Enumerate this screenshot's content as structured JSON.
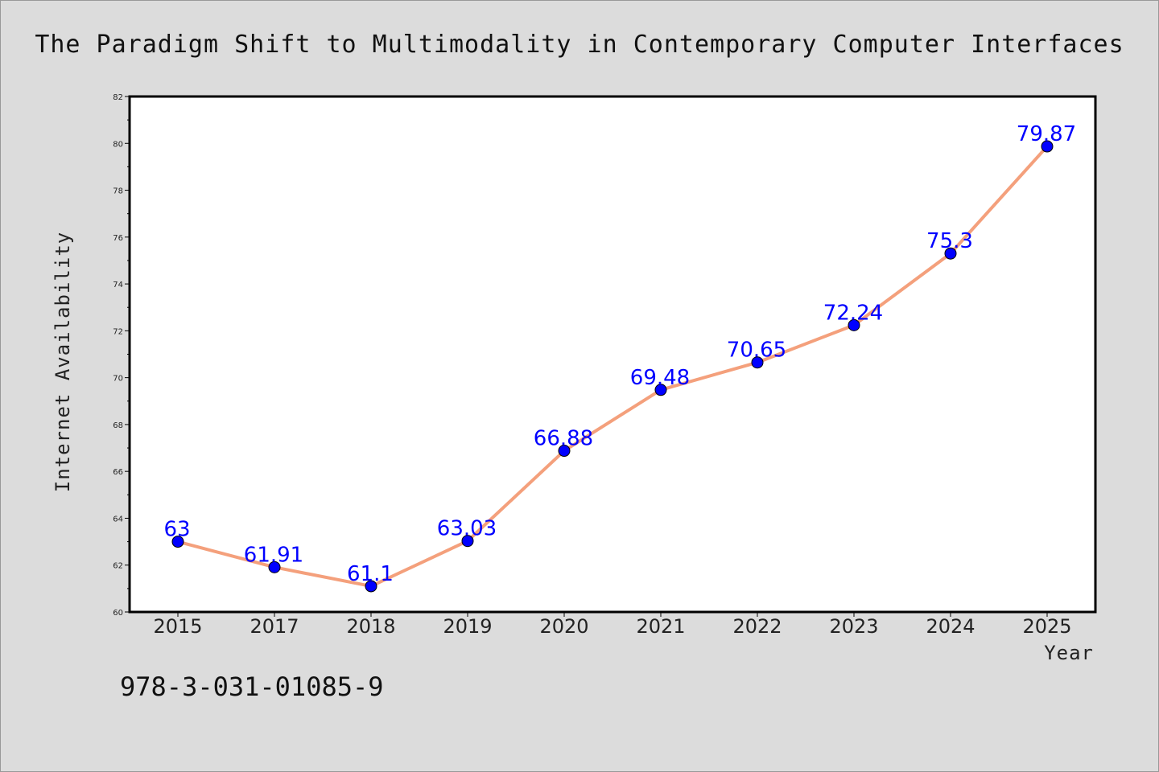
{
  "footnote": "978-3-031-01085-9",
  "chart_data": {
    "type": "line",
    "title": "The Paradigm Shift to Multimodality in Contemporary Computer Interfaces",
    "xlabel": "Year",
    "ylabel": "Internet Availability",
    "categories": [
      "2015",
      "2017",
      "2018",
      "2019",
      "2020",
      "2021",
      "2022",
      "2023",
      "2024",
      "2025"
    ],
    "values": [
      63,
      61.91,
      61.1,
      63.03,
      66.88,
      69.48,
      70.65,
      72.24,
      75.3,
      79.87
    ],
    "data_labels": [
      "63",
      "61.91",
      "61.1",
      "63.03",
      "66.88",
      "69.48",
      "70.65",
      "72.24",
      "75.3",
      "79.87"
    ],
    "ylim": [
      60,
      82
    ],
    "yticks": [
      60,
      62,
      64,
      66,
      68,
      70,
      72,
      74,
      76,
      78,
      80,
      82
    ],
    "grid": false,
    "legend": "none",
    "colors": {
      "line": "#f4a07c",
      "marker": "#0000ff",
      "label": "#0000ff",
      "plot_background": "#ffffff",
      "figure_background": "#dcdcdc"
    }
  }
}
